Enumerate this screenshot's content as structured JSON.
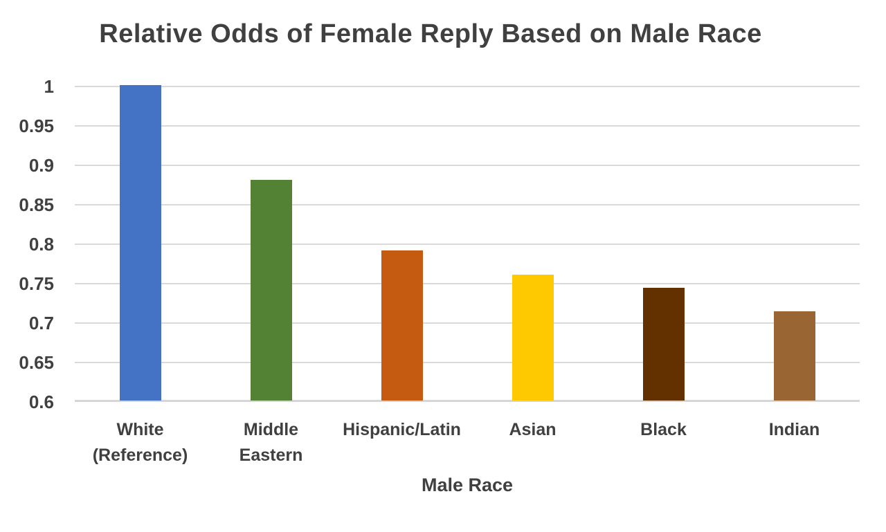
{
  "chart_data": {
    "type": "bar",
    "title": "Relative Odds of Female Reply Based on Male Race",
    "xlabel": "Male Race",
    "ylabel": "",
    "categories": [
      "White\n(Reference)",
      "Middle\nEastern",
      "Hispanic/Latin",
      "Asian",
      "Black",
      "Indian"
    ],
    "values": [
      1.0,
      0.88,
      0.79,
      0.76,
      0.743,
      0.713
    ],
    "bar_colors": [
      "#4472C4",
      "#548235",
      "#C55A11",
      "#FFC900",
      "#633000",
      "#996633"
    ],
    "bar_names": [
      "white-reference",
      "middle-eastern",
      "hispanic-latin",
      "asian",
      "black",
      "indian"
    ],
    "ylim": [
      0.6,
      1.0
    ],
    "ytick_labels": [
      "1",
      "0.95",
      "0.9",
      "0.85",
      "0.8",
      "0.75",
      "0.7",
      "0.65",
      "0.6"
    ],
    "grid": true,
    "legend": "none",
    "colors": {
      "text": "#404040",
      "gridline": "#D9D9D9",
      "axis_line": "#D6D6D6",
      "background": "#FFFFFF"
    }
  }
}
